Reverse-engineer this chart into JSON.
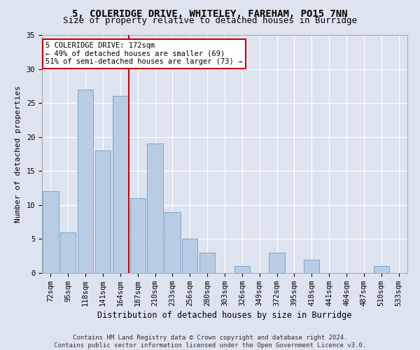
{
  "title1": "5, COLERIDGE DRIVE, WHITELEY, FAREHAM, PO15 7NN",
  "title2": "Size of property relative to detached houses in Burridge",
  "xlabel": "Distribution of detached houses by size in Burridge",
  "ylabel": "Number of detached properties",
  "categories": [
    "72sqm",
    "95sqm",
    "118sqm",
    "141sqm",
    "164sqm",
    "187sqm",
    "210sqm",
    "233sqm",
    "256sqm",
    "280sqm",
    "303sqm",
    "326sqm",
    "349sqm",
    "372sqm",
    "395sqm",
    "418sqm",
    "441sqm",
    "464sqm",
    "487sqm",
    "510sqm",
    "533sqm"
  ],
  "values": [
    12,
    6,
    27,
    18,
    26,
    11,
    19,
    9,
    5,
    3,
    0,
    1,
    0,
    3,
    0,
    2,
    0,
    0,
    0,
    1,
    0
  ],
  "bar_color": "#b8cce4",
  "bar_edge_color": "#7ba7c9",
  "property_line_x": 4.5,
  "annotation_line1": "5 COLERIDGE DRIVE: 172sqm",
  "annotation_line2": "← 49% of detached houses are smaller (69)",
  "annotation_line3": "51% of semi-detached houses are larger (73) →",
  "annotation_box_color": "#ffffff",
  "annotation_border_color": "#cc0000",
  "vline_color": "#cc0000",
  "ylim": [
    0,
    35
  ],
  "yticks": [
    0,
    5,
    10,
    15,
    20,
    25,
    30,
    35
  ],
  "background_color": "#dde4f0",
  "grid_color": "#ffffff",
  "footer_line1": "Contains HM Land Registry data © Crown copyright and database right 2024.",
  "footer_line2": "Contains public sector information licensed under the Open Government Licence v3.0.",
  "title1_fontsize": 10,
  "title2_fontsize": 9,
  "xlabel_fontsize": 8.5,
  "ylabel_fontsize": 8,
  "tick_fontsize": 7.5,
  "annotation_fontsize": 7.5,
  "footer_fontsize": 6.5
}
